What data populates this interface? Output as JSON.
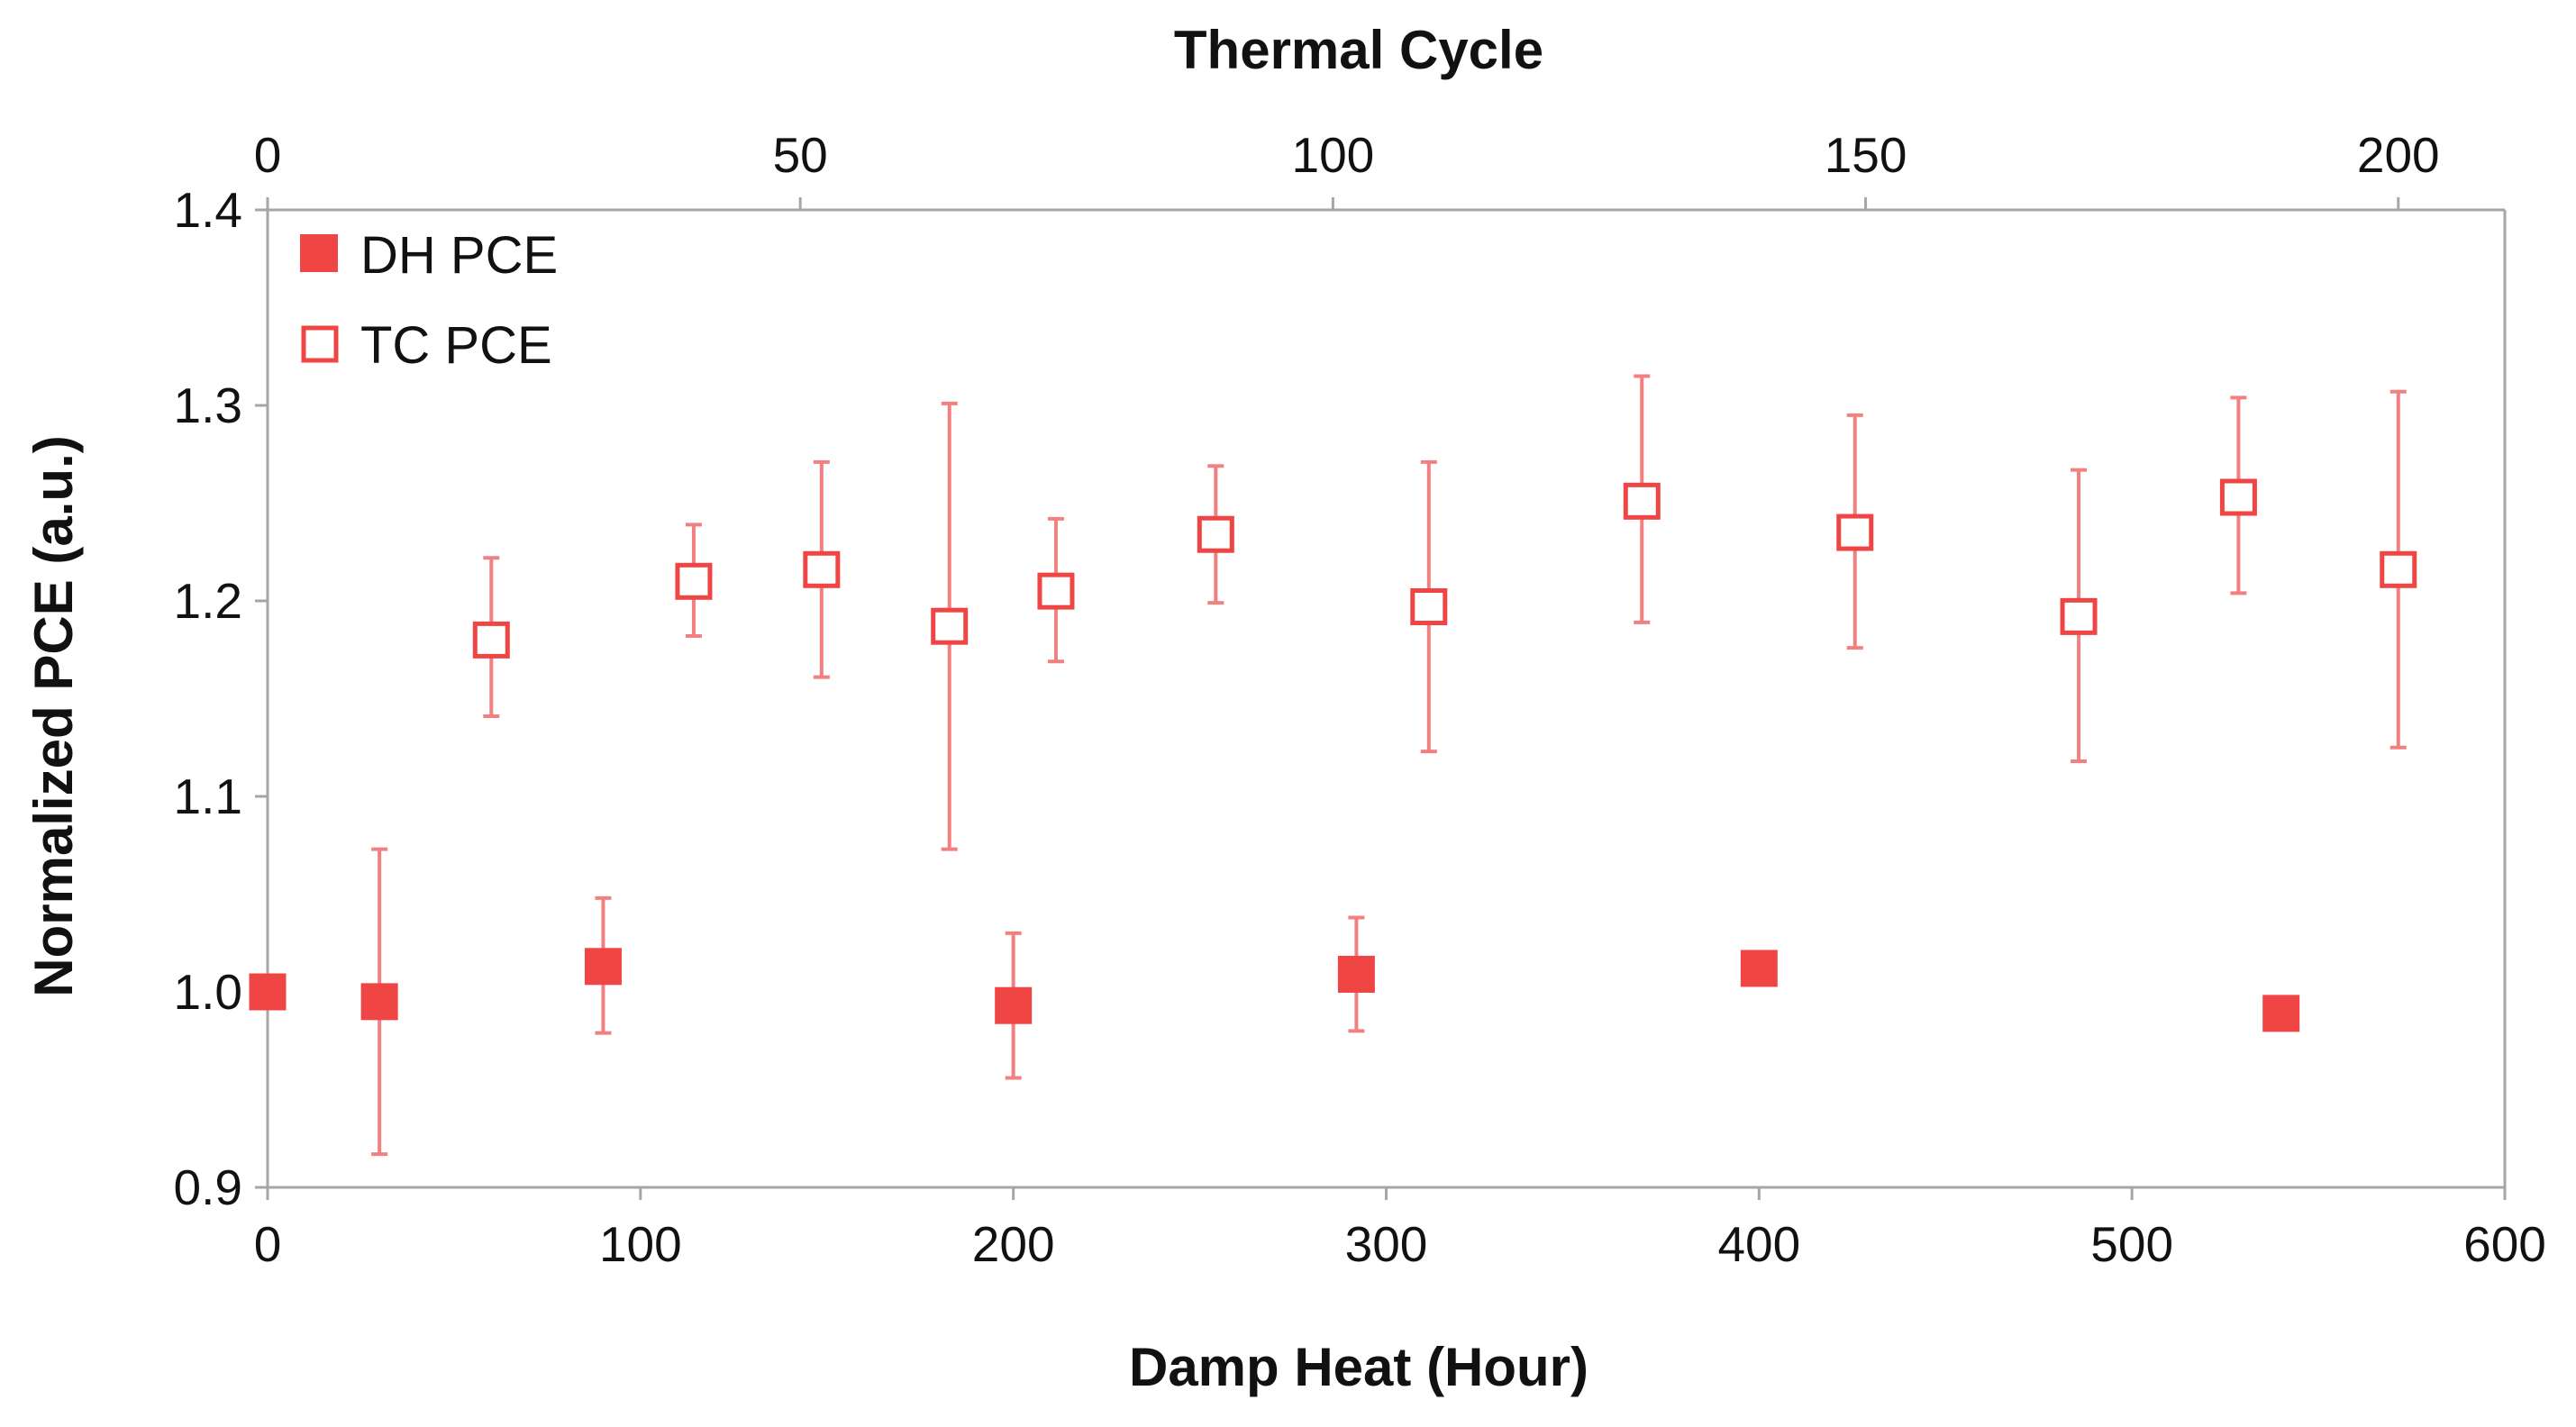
{
  "chart_data": {
    "type": "scatter",
    "title": "",
    "xlabel": "Damp Heat (Hour)",
    "x2label": "Thermal Cycle",
    "ylabel": "Normalized PCE (a.u.)",
    "xlim": [
      0,
      600
    ],
    "x2lim": [
      0,
      210
    ],
    "ylim": [
      0.9,
      1.4
    ],
    "xticks": [
      0,
      100,
      200,
      300,
      400,
      500,
      600
    ],
    "x2ticks": [
      0,
      50,
      100,
      150,
      200
    ],
    "yticks": [
      0.9,
      1.0,
      1.1,
      1.2,
      1.3,
      1.4
    ],
    "ytick_labels": [
      "0.9",
      "1.0",
      "1.1",
      "1.2",
      "1.3",
      "1.4"
    ],
    "legend_position": "top-left",
    "grid": false,
    "series": [
      {
        "name": "DH PCE",
        "axis": "bottom",
        "marker": "filled-square",
        "color": "#f04545",
        "points": [
          {
            "x": 0,
            "y": 1.0,
            "err_low": 1.0,
            "err_high": 1.0
          },
          {
            "x": 30,
            "y": 0.995,
            "err_low": 0.917,
            "err_high": 1.073
          },
          {
            "x": 90,
            "y": 1.013,
            "err_low": 0.979,
            "err_high": 1.048
          },
          {
            "x": 200,
            "y": 0.993,
            "err_low": 0.956,
            "err_high": 1.03
          },
          {
            "x": 292,
            "y": 1.009,
            "err_low": 0.98,
            "err_high": 1.038
          },
          {
            "x": 400,
            "y": 1.012,
            "err_low": 1.007,
            "err_high": 1.017
          },
          {
            "x": 540,
            "y": 0.989,
            "err_low": 0.989,
            "err_high": 0.989
          }
        ]
      },
      {
        "name": "TC PCE",
        "axis": "top",
        "marker": "open-square",
        "color": "#f04545",
        "points": [
          {
            "x": 21,
            "y": 1.18,
            "err_low": 1.141,
            "err_high": 1.222
          },
          {
            "x": 40,
            "y": 1.21,
            "err_low": 1.182,
            "err_high": 1.239
          },
          {
            "x": 52,
            "y": 1.216,
            "err_low": 1.161,
            "err_high": 1.271
          },
          {
            "x": 64,
            "y": 1.187,
            "err_low": 1.073,
            "err_high": 1.301
          },
          {
            "x": 74,
            "y": 1.205,
            "err_low": 1.169,
            "err_high": 1.242
          },
          {
            "x": 89,
            "y": 1.234,
            "err_low": 1.199,
            "err_high": 1.269
          },
          {
            "x": 109,
            "y": 1.197,
            "err_low": 1.123,
            "err_high": 1.271
          },
          {
            "x": 129,
            "y": 1.251,
            "err_low": 1.189,
            "err_high": 1.315
          },
          {
            "x": 149,
            "y": 1.235,
            "err_low": 1.176,
            "err_high": 1.295
          },
          {
            "x": 170,
            "y": 1.192,
            "err_low": 1.118,
            "err_high": 1.267
          },
          {
            "x": 185,
            "y": 1.253,
            "err_low": 1.204,
            "err_high": 1.304
          },
          {
            "x": 200,
            "y": 1.216,
            "err_low": 1.125,
            "err_high": 1.307
          }
        ]
      }
    ]
  }
}
